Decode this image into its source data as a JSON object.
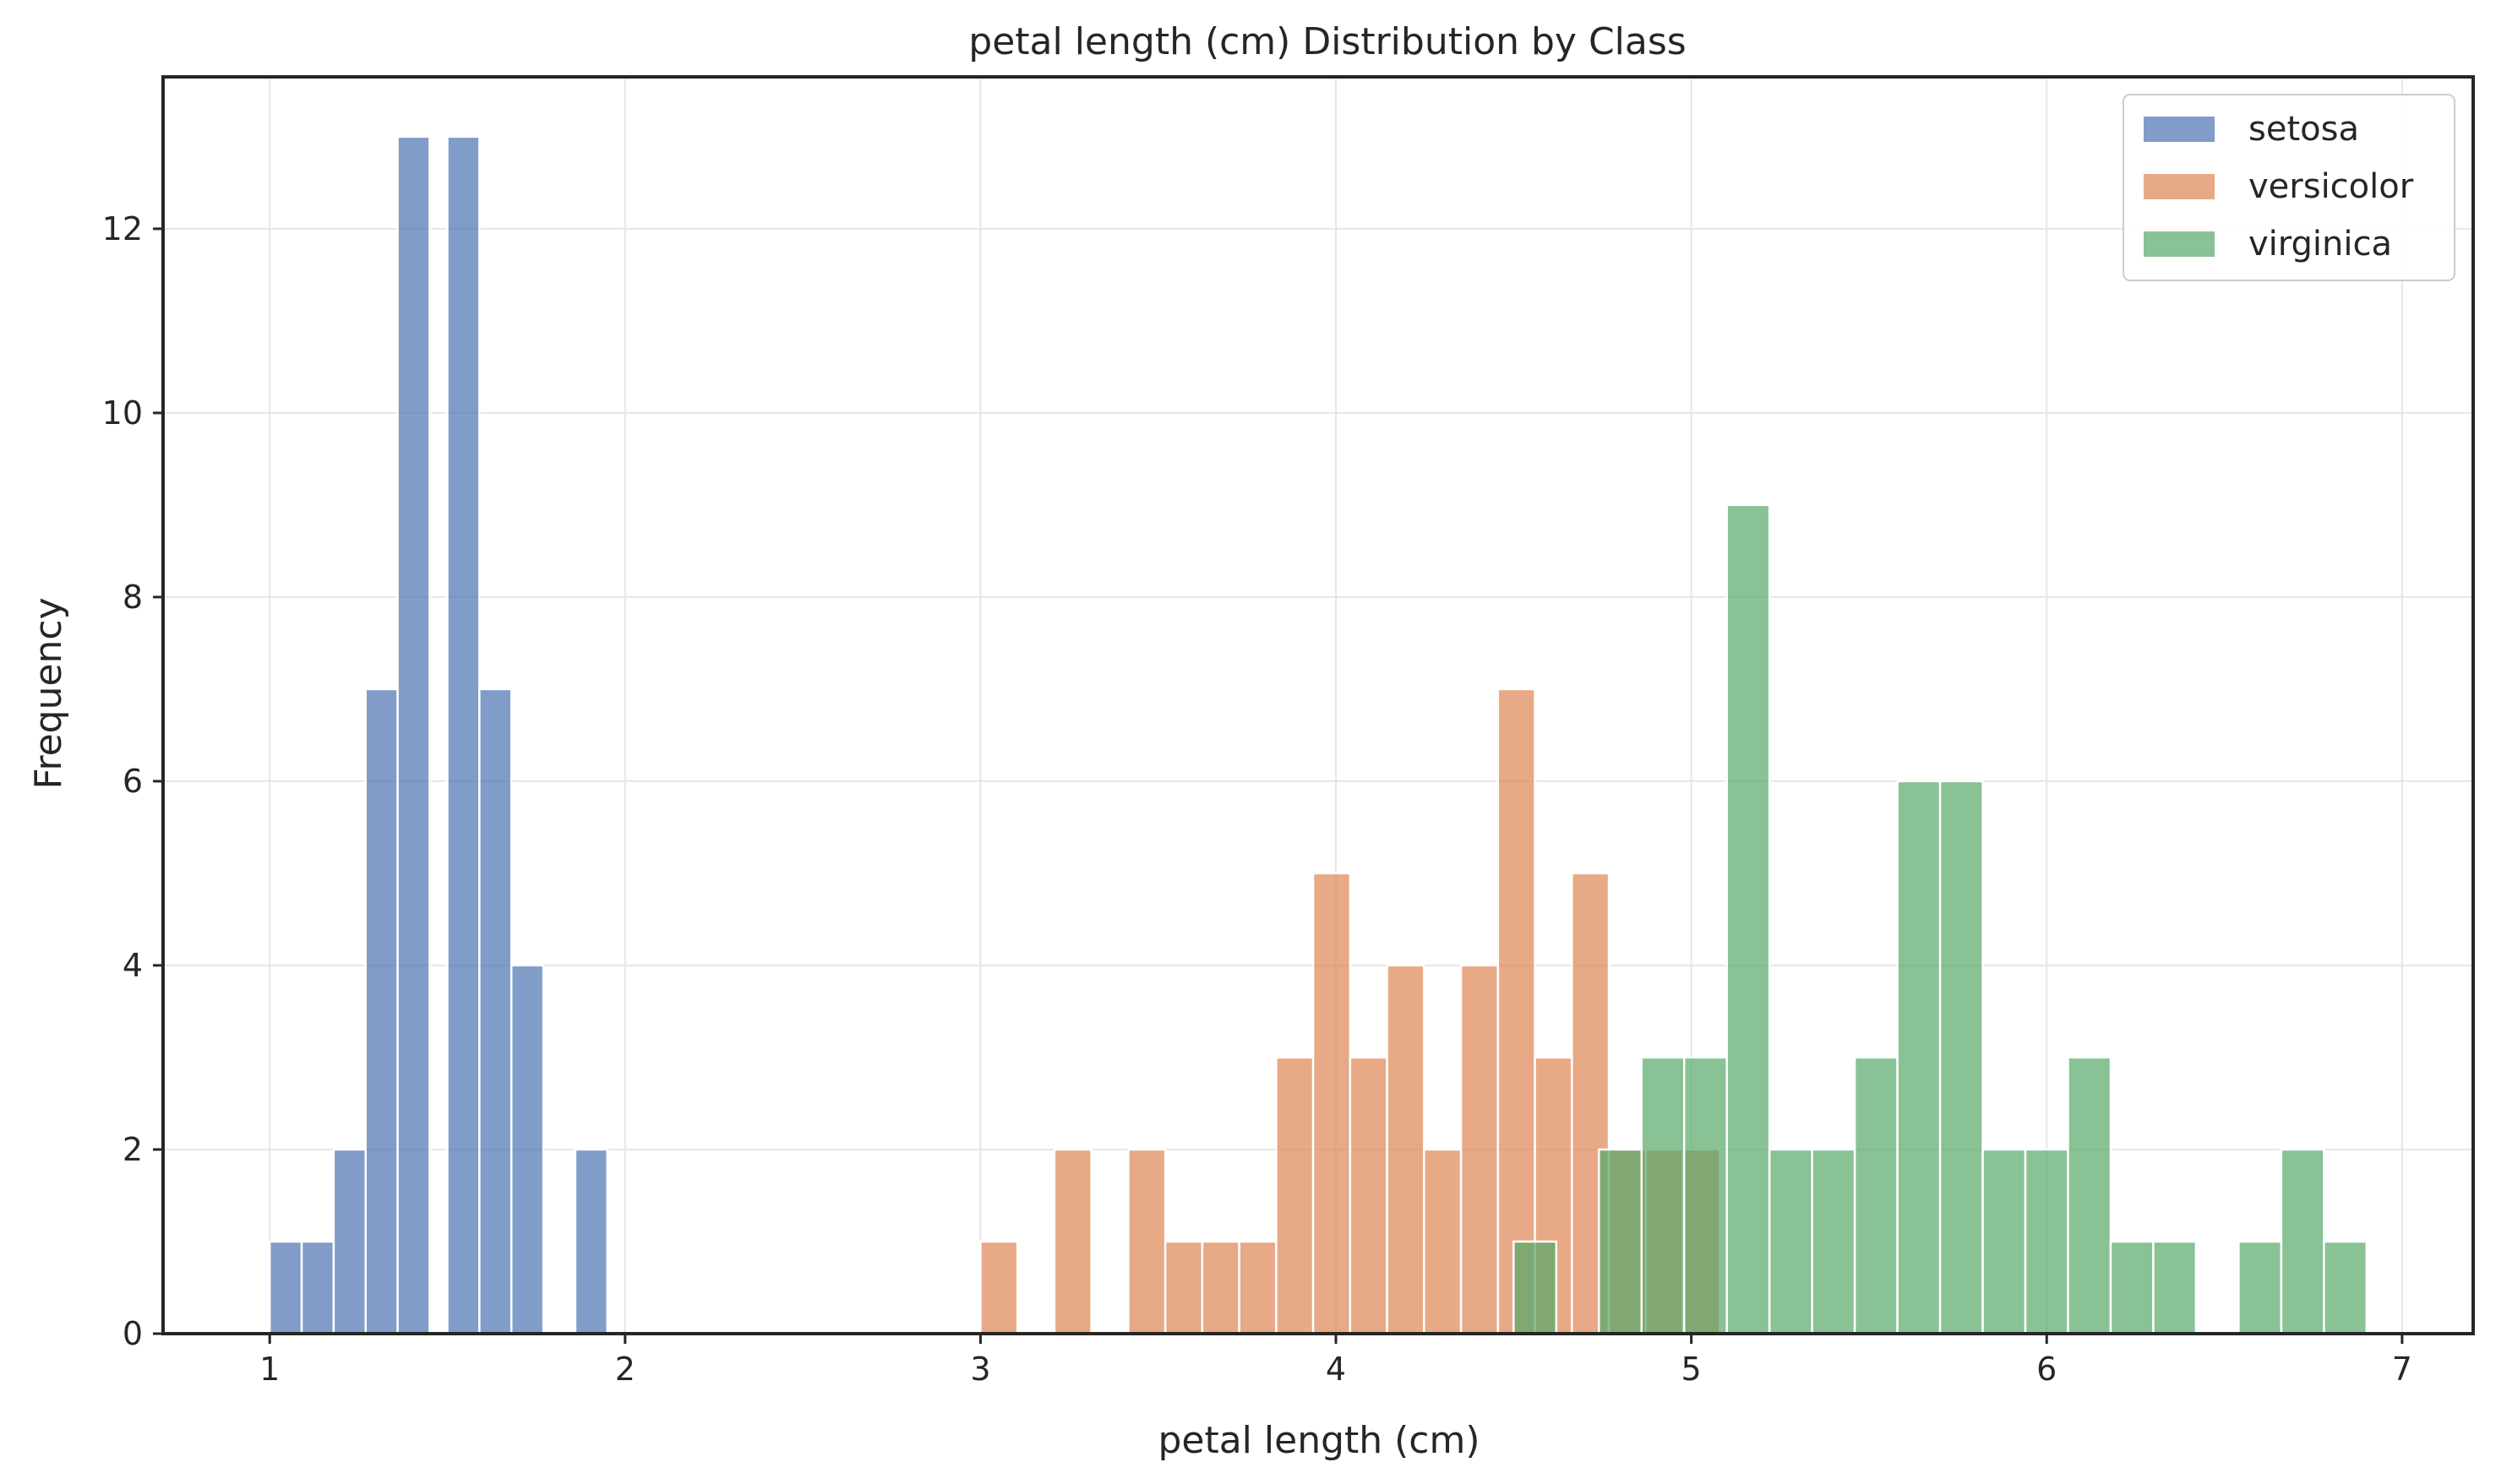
{
  "chart_data": {
    "type": "bar",
    "title": "petal length (cm) Distribution by Class",
    "xlabel": "petal length (cm)",
    "ylabel": "Frequency",
    "xlim": [
      0.7,
      7.2
    ],
    "ylim": [
      0,
      13.65
    ],
    "xticks": [
      1,
      2,
      3,
      4,
      5,
      6,
      7
    ],
    "yticks": [
      0,
      2,
      4,
      6,
      8,
      10,
      12
    ],
    "grid": true,
    "legend_position": "top-right",
    "series": [
      {
        "name": "setosa",
        "color": "#4c72b0",
        "bin_width": 0.09,
        "bins": [
          {
            "x0": 1.0,
            "count": 1
          },
          {
            "x0": 1.09,
            "count": 1
          },
          {
            "x0": 1.18,
            "count": 2
          },
          {
            "x0": 1.27,
            "count": 7
          },
          {
            "x0": 1.36,
            "count": 13
          },
          {
            "x0": 1.45,
            "count": 0
          },
          {
            "x0": 1.5,
            "count": 13
          },
          {
            "x0": 1.59,
            "count": 7
          },
          {
            "x0": 1.68,
            "count": 4
          },
          {
            "x0": 1.86,
            "count": 2
          }
        ]
      },
      {
        "name": "versicolor",
        "color": "#dd8452",
        "bin_width": 0.104,
        "bins": [
          {
            "x0": 3.0,
            "count": 1
          },
          {
            "x0": 3.208,
            "count": 2
          },
          {
            "x0": 3.416,
            "count": 2
          },
          {
            "x0": 3.52,
            "count": 1
          },
          {
            "x0": 3.624,
            "count": 1
          },
          {
            "x0": 3.728,
            "count": 1
          },
          {
            "x0": 3.832,
            "count": 3
          },
          {
            "x0": 3.936,
            "count": 5
          },
          {
            "x0": 4.04,
            "count": 3
          },
          {
            "x0": 4.144,
            "count": 4
          },
          {
            "x0": 4.248,
            "count": 2
          },
          {
            "x0": 4.352,
            "count": 4
          },
          {
            "x0": 4.456,
            "count": 7
          },
          {
            "x0": 4.56,
            "count": 3
          },
          {
            "x0": 4.664,
            "count": 5
          },
          {
            "x0": 4.768,
            "count": 2
          },
          {
            "x0": 4.872,
            "count": 2
          },
          {
            "x0": 4.976,
            "count": 2
          }
        ]
      },
      {
        "name": "virginica",
        "color": "#55a868",
        "bin_width": 0.12,
        "bins": [
          {
            "x0": 4.5,
            "count": 1
          },
          {
            "x0": 4.74,
            "count": 2
          },
          {
            "x0": 4.86,
            "count": 3
          },
          {
            "x0": 4.98,
            "count": 3
          },
          {
            "x0": 5.1,
            "count": 9
          },
          {
            "x0": 5.22,
            "count": 2
          },
          {
            "x0": 5.34,
            "count": 2
          },
          {
            "x0": 5.46,
            "count": 3
          },
          {
            "x0": 5.58,
            "count": 6
          },
          {
            "x0": 5.7,
            "count": 6
          },
          {
            "x0": 5.82,
            "count": 2
          },
          {
            "x0": 5.94,
            "count": 2
          },
          {
            "x0": 6.06,
            "count": 3
          },
          {
            "x0": 6.18,
            "count": 1
          },
          {
            "x0": 6.3,
            "count": 1
          },
          {
            "x0": 6.54,
            "count": 1
          },
          {
            "x0": 6.66,
            "count": 2
          },
          {
            "x0": 6.78,
            "count": 1
          }
        ]
      }
    ]
  }
}
